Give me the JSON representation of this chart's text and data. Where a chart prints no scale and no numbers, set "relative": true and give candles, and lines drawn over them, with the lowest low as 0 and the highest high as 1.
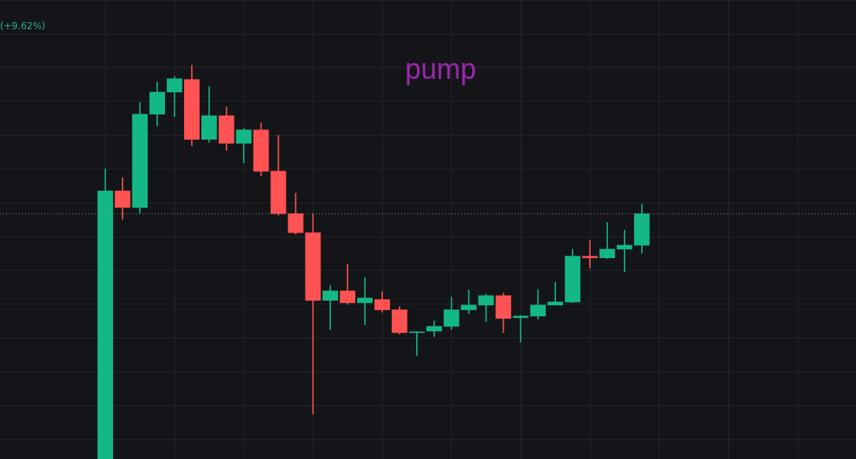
{
  "chart_data": {
    "type": "candlestick",
    "relative": true,
    "grid": true,
    "tick_labels": false,
    "annotations": [
      "(+9.62%)",
      "pump"
    ],
    "categories": [
      null,
      null,
      null,
      null,
      null,
      null,
      null,
      null,
      null,
      null,
      null,
      null,
      null,
      null,
      null,
      null,
      null,
      null,
      null,
      null,
      null,
      null,
      null,
      null,
      null,
      null,
      null,
      null,
      null,
      null,
      null,
      null
    ],
    "ohlc": [
      [
        0,
        0.737,
        0,
        0.681
      ],
      [
        0.681,
        0.715,
        0.609,
        0.639
      ],
      [
        0.639,
        0.906,
        0.625,
        0.876
      ],
      [
        0.876,
        0.958,
        0.846,
        0.932
      ],
      [
        0.932,
        0.972,
        0.87,
        0.966
      ],
      [
        0.964,
        1,
        0.796,
        0.812
      ],
      [
        0.812,
        0.946,
        0.804,
        0.872
      ],
      [
        0.872,
        0.894,
        0.784,
        0.802
      ],
      [
        0.802,
        0.84,
        0.752,
        0.836
      ],
      [
        0.836,
        0.854,
        0.719,
        0.731
      ],
      [
        0.731,
        0.822,
        0.619,
        0.623
      ],
      [
        0.623,
        0.675,
        0.571,
        0.575
      ],
      [
        0.575,
        0.623,
        0.114,
        0.403
      ],
      [
        0.403,
        0.441,
        0.329,
        0.427
      ],
      [
        0.427,
        0.495,
        0.393,
        0.397
      ],
      [
        0.397,
        0.461,
        0.341,
        0.409
      ],
      [
        0.405,
        0.425,
        0.373,
        0.379
      ],
      [
        0.379,
        0.387,
        0.317,
        0.321
      ],
      [
        0.321,
        0.323,
        0.263,
        0.323
      ],
      [
        0.325,
        0.351,
        0.311,
        0.337
      ],
      [
        0.337,
        0.411,
        0.329,
        0.379
      ],
      [
        0.379,
        0.429,
        0.369,
        0.391
      ],
      [
        0.391,
        0.419,
        0.349,
        0.415
      ],
      [
        0.415,
        0.421,
        0.321,
        0.357
      ],
      [
        0.359,
        0.365,
        0.297,
        0.363
      ],
      [
        0.363,
        0.431,
        0.355,
        0.391
      ],
      [
        0.391,
        0.449,
        0.391,
        0.399
      ],
      [
        0.399,
        0.533,
        0.397,
        0.515
      ],
      [
        0.515,
        0.555,
        0.485,
        0.511
      ],
      [
        0.511,
        0.601,
        0.509,
        0.533
      ],
      [
        0.533,
        0.581,
        0.475,
        0.543
      ],
      [
        0.543,
        0.647,
        0.523,
        0.623
      ]
    ],
    "colors": [
      "#14b886",
      "#ff5252",
      "#14b886",
      "#14b886",
      "#14b886",
      "#ff5252",
      "#14b886",
      "#ff5252",
      "#14b886",
      "#ff5252",
      "#ff5252",
      "#ff5252",
      "#ff5252",
      "#14b886",
      "#ff5252",
      "#14b886",
      "#ff5252",
      "#ff5252",
      "#14b886",
      "#14b886",
      "#14b886",
      "#14b886",
      "#14b886",
      "#ff5252",
      "#14b886",
      "#14b886",
      "#14b886",
      "#14b886",
      "#ff5252",
      "#14b886",
      "#14b886",
      "#14b886"
    ],
    "ref_lines": [
      {
        "axis": "y",
        "value": 0.623,
        "line_style": "dotted",
        "color": "#9598a1"
      }
    ]
  }
}
